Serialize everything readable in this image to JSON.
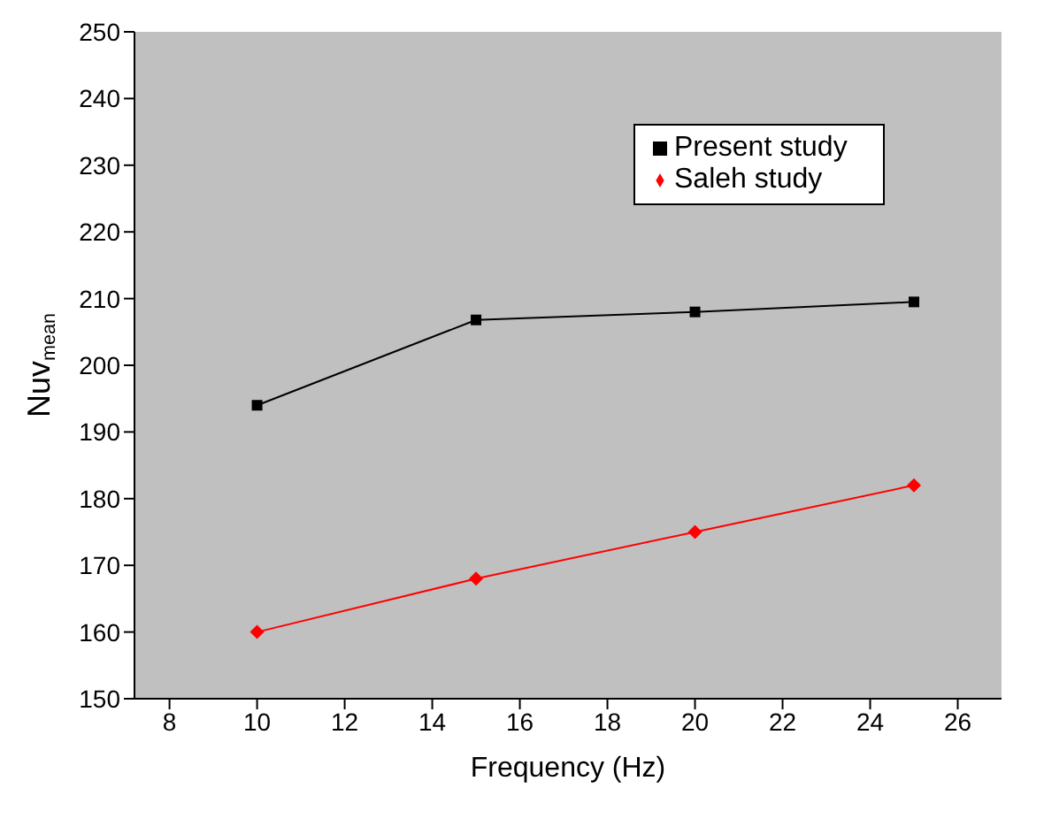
{
  "chart_data": {
    "type": "line",
    "xlabel": "Frequency (Hz)",
    "ylabel": "Nuv$_{mean}$",
    "x": [
      10,
      15,
      20,
      25
    ],
    "series": [
      {
        "name": "Present study",
        "color": "#000000",
        "marker": "square",
        "values": [
          194,
          206.8,
          208,
          209.5
        ]
      },
      {
        "name": "Saleh study",
        "color": "#ff0000",
        "marker": "diamond",
        "values": [
          160,
          168,
          175,
          182
        ]
      }
    ],
    "xlim": [
      7.2,
      27
    ],
    "xticks": [
      8,
      10,
      12,
      14,
      16,
      18,
      20,
      22,
      24,
      26
    ],
    "ylim": [
      150,
      250
    ],
    "yticks": [
      150,
      160,
      170,
      180,
      190,
      200,
      210,
      220,
      230,
      240,
      250
    ],
    "legend": "top right"
  }
}
